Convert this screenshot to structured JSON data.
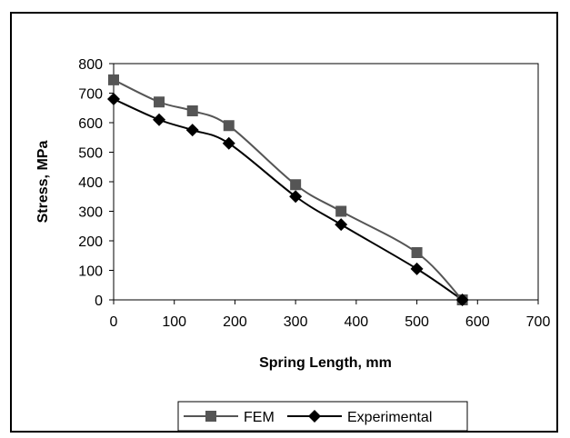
{
  "chart_data": {
    "type": "line",
    "title": "",
    "xlabel": "Spring Length, mm",
    "ylabel": "Stress, MPa",
    "xlim": [
      0,
      700
    ],
    "ylim": [
      0,
      800
    ],
    "xticks": [
      "0",
      "100",
      "200",
      "300",
      "400",
      "500",
      "600",
      "700"
    ],
    "yticks": [
      "0",
      "100",
      "200",
      "300",
      "400",
      "500",
      "600",
      "700",
      "800"
    ],
    "grid": false,
    "legend": "bottom",
    "series": [
      {
        "name": "FEM",
        "marker": "square",
        "color": "#555555",
        "x": [
          0,
          75,
          130,
          190,
          300,
          375,
          500,
          575
        ],
        "y": [
          745,
          670,
          640,
          590,
          390,
          300,
          160,
          0
        ]
      },
      {
        "name": "Experimental",
        "marker": "diamond",
        "color": "#000000",
        "x": [
          0,
          75,
          130,
          190,
          300,
          375,
          500,
          575
        ],
        "y": [
          680,
          610,
          575,
          530,
          350,
          255,
          105,
          0
        ]
      }
    ]
  }
}
